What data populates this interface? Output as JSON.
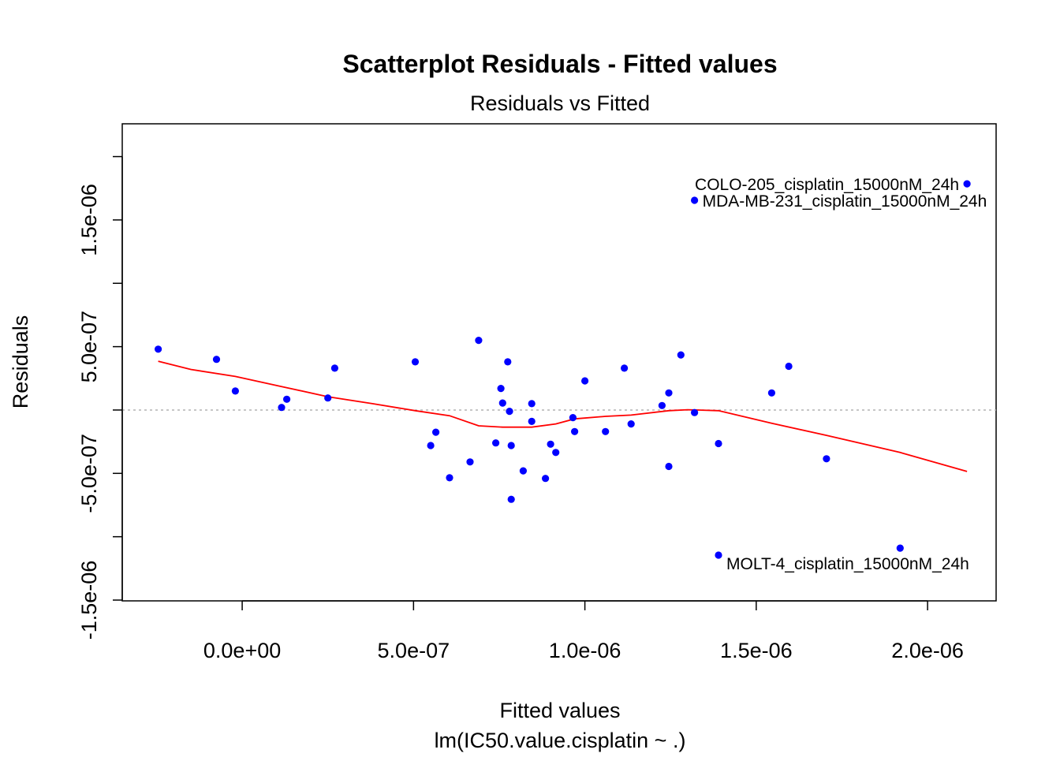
{
  "chart_data": {
    "type": "scatter",
    "title": "Scatterplot Residuals - Fitted values",
    "subtitle": "Residuals vs Fitted",
    "xlabel": "Fitted values",
    "xlabel2": "lm(IC50.value.cisplatin ~ .)",
    "ylabel": "Residuals",
    "xlim": [
      -3.5e-07,
      2.2e-06
    ],
    "ylim": [
      -1.5e-06,
      2.1e-06
    ],
    "x_ticks": [
      {
        "value": 0,
        "label": "0.0e+00"
      },
      {
        "value": 5e-07,
        "label": "5.0e-07"
      },
      {
        "value": 1e-06,
        "label": "1.0e-06"
      },
      {
        "value": 1.5e-06,
        "label": "1.5e-06"
      },
      {
        "value": 2e-06,
        "label": "2.0e-06"
      }
    ],
    "y_ticks_major": [
      {
        "value": -1.5e-06,
        "label": "-1.5e-06"
      },
      {
        "value": -5e-07,
        "label": "-5.0e-07"
      },
      {
        "value": 5e-07,
        "label": "5.0e-07"
      },
      {
        "value": 1.5e-06,
        "label": "1.5e-06"
      }
    ],
    "y_ticks_minor": [
      -1e-06,
      0,
      1e-06,
      2e-06
    ],
    "reference_line_y": 0,
    "point_color": "#0000ff",
    "smooth_color": "#ff0000",
    "points": [
      {
        "x": -2.45e-07,
        "y": 4.8e-07
      },
      {
        "x": -7.5e-08,
        "y": 4e-07
      },
      {
        "x": -2e-08,
        "y": 1.5e-07
      },
      {
        "x": 1.15e-07,
        "y": 2e-08
      },
      {
        "x": 1.3e-07,
        "y": 8.5e-08
      },
      {
        "x": 2.5e-07,
        "y": 9.5e-08
      },
      {
        "x": 2.7e-07,
        "y": 3.3e-07
      },
      {
        "x": 5.05e-07,
        "y": 3.8e-07
      },
      {
        "x": 5.5e-07,
        "y": -2.8e-07
      },
      {
        "x": 5.65e-07,
        "y": -1.75e-07
      },
      {
        "x": 6.05e-07,
        "y": -5.35e-07
      },
      {
        "x": 6.65e-07,
        "y": -4.1e-07
      },
      {
        "x": 6.9e-07,
        "y": 5.5e-07
      },
      {
        "x": 7.4e-07,
        "y": -2.6e-07
      },
      {
        "x": 7.55e-07,
        "y": 1.7e-07
      },
      {
        "x": 7.6e-07,
        "y": 5.5e-08
      },
      {
        "x": 7.75e-07,
        "y": 3.8e-07
      },
      {
        "x": 7.8e-07,
        "y": -1e-08
      },
      {
        "x": 7.85e-07,
        "y": -2.8e-07
      },
      {
        "x": 7.85e-07,
        "y": -7.05e-07
      },
      {
        "x": 8.2e-07,
        "y": -4.8e-07
      },
      {
        "x": 8.45e-07,
        "y": 5e-08
      },
      {
        "x": 8.45e-07,
        "y": -9e-08
      },
      {
        "x": 8.85e-07,
        "y": -5.4e-07
      },
      {
        "x": 9e-07,
        "y": -2.7e-07
      },
      {
        "x": 9.15e-07,
        "y": -3.35e-07
      },
      {
        "x": 9.65e-07,
        "y": -6e-08
      },
      {
        "x": 9.7e-07,
        "y": -1.7e-07
      },
      {
        "x": 1e-06,
        "y": 2.3e-07
      },
      {
        "x": 1.06e-06,
        "y": -1.7e-07
      },
      {
        "x": 1.115e-06,
        "y": 3.3e-07
      },
      {
        "x": 1.135e-06,
        "y": -1.1e-07
      },
      {
        "x": 1.225e-06,
        "y": 3.5e-08
      },
      {
        "x": 1.245e-06,
        "y": 1.35e-07
      },
      {
        "x": 1.245e-06,
        "y": -4.45e-07
      },
      {
        "x": 1.28e-06,
        "y": 4.35e-07
      },
      {
        "x": 1.32e-06,
        "y": -2e-08
      },
      {
        "x": 1.32e-06,
        "y": 1.655e-06
      },
      {
        "x": 1.39e-06,
        "y": -2.65e-07
      },
      {
        "x": 1.39e-06,
        "y": -1.145e-06
      },
      {
        "x": 1.545e-06,
        "y": 1.35e-07
      },
      {
        "x": 1.595e-06,
        "y": 3.45e-07
      },
      {
        "x": 1.705e-06,
        "y": -3.85e-07
      },
      {
        "x": 1.92e-06,
        "y": -1.09e-06
      },
      {
        "x": 2.115e-06,
        "y": 1.785e-06
      }
    ],
    "point_labels": [
      {
        "x": 2.115e-06,
        "y": 1.785e-06,
        "text": "COLO-205_cisplatin_15000nM_24h",
        "pos": "left"
      },
      {
        "x": 1.32e-06,
        "y": 1.655e-06,
        "text": "MDA-MB-231_cisplatin_15000nM_24h",
        "pos": "right"
      },
      {
        "x": 1.39e-06,
        "y": -1.145e-06,
        "text": "MOLT-4_cisplatin_15000nM_24h",
        "pos": "below-right"
      }
    ],
    "smooth_line": [
      {
        "x": -2.45e-07,
        "y": 3.85e-07
      },
      {
        "x": -1.5e-07,
        "y": 3.2e-07
      },
      {
        "x": -2e-08,
        "y": 2.65e-07
      },
      {
        "x": 1.15e-07,
        "y": 1.85e-07
      },
      {
        "x": 2.5e-07,
        "y": 1.05e-07
      },
      {
        "x": 3.8e-07,
        "y": 5e-08
      },
      {
        "x": 5.05e-07,
        "y": -5e-09
      },
      {
        "x": 6.05e-07,
        "y": -4.5e-08
      },
      {
        "x": 6.9e-07,
        "y": -1.25e-07
      },
      {
        "x": 7.6e-07,
        "y": -1.35e-07
      },
      {
        "x": 8.45e-07,
        "y": -1.35e-07
      },
      {
        "x": 9.15e-07,
        "y": -1.1e-07
      },
      {
        "x": 9.7e-07,
        "y": -7e-08
      },
      {
        "x": 1.06e-06,
        "y": -5e-08
      },
      {
        "x": 1.135e-06,
        "y": -4e-08
      },
      {
        "x": 1.245e-06,
        "y": -5e-09
      },
      {
        "x": 1.3e-06,
        "y": 2e-09
      },
      {
        "x": 1.39e-06,
        "y": -5e-09
      },
      {
        "x": 1.545e-06,
        "y": -1.05e-07
      },
      {
        "x": 1.705e-06,
        "y": -2e-07
      },
      {
        "x": 1.92e-06,
        "y": -3.35e-07
      },
      {
        "x": 2.115e-06,
        "y": -4.85e-07
      }
    ]
  }
}
